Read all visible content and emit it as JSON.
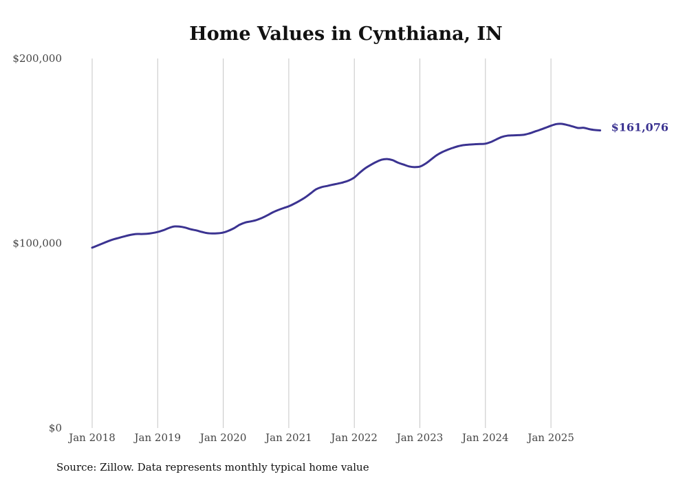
{
  "chart_data": {
    "type": "line",
    "title": "Home Values in Cynthiana, IN",
    "xlabel": "",
    "ylabel": "",
    "source": "Source: Zillow. Data represents monthly typical home value",
    "ylim": [
      0,
      200000
    ],
    "y_ticks": [
      {
        "value": 0,
        "label": "$0"
      },
      {
        "value": 100000,
        "label": "$100,000"
      },
      {
        "value": 200000,
        "label": "$200,000"
      }
    ],
    "x_ticks": [
      "Jan 2018",
      "Jan 2019",
      "Jan 2020",
      "Jan 2021",
      "Jan 2022",
      "Jan 2023",
      "Jan 2024",
      "Jan 2025"
    ],
    "x_start": "Jan 2018",
    "x_frequency": "monthly",
    "grid": "vertical",
    "line_color": "#3b3391",
    "end_label": "$161,076",
    "series": [
      {
        "name": "Typical home value",
        "values": [
          97600,
          98800,
          100000,
          101200,
          102200,
          103000,
          103800,
          104500,
          105000,
          105000,
          105100,
          105500,
          106100,
          107000,
          108200,
          109100,
          109000,
          108500,
          107600,
          107000,
          106200,
          105500,
          105300,
          105400,
          105800,
          106800,
          108200,
          110000,
          111200,
          111800,
          112500,
          113600,
          115000,
          116600,
          117900,
          119000,
          120000,
          121400,
          123000,
          124800,
          127000,
          129200,
          130400,
          131000,
          131700,
          132300,
          133000,
          134000,
          135600,
          138200,
          140600,
          142400,
          144000,
          145200,
          145600,
          145000,
          143600,
          142600,
          141600,
          141200,
          141500,
          143000,
          145200,
          147500,
          149200,
          150500,
          151600,
          152500,
          153100,
          153400,
          153600,
          153700,
          153900,
          154800,
          156200,
          157500,
          158200,
          158400,
          158500,
          158700,
          159400,
          160400,
          161400,
          162500,
          163600,
          164500,
          164600,
          164000,
          163200,
          162400,
          162500,
          161800,
          161300,
          161076
        ]
      }
    ]
  }
}
